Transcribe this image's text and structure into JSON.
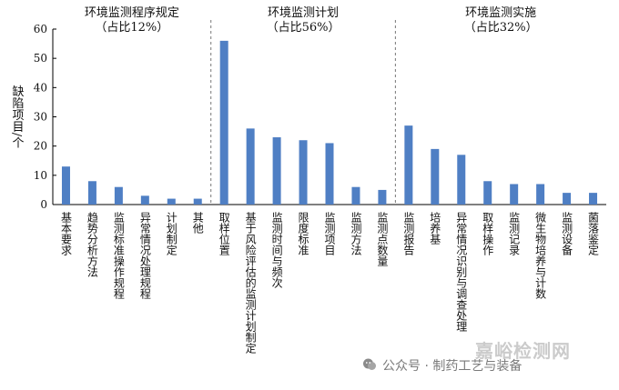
{
  "chart_data": {
    "type": "bar",
    "ylabel": "缺陷项目/个",
    "ylim": [
      0,
      60
    ],
    "yticks": [
      0,
      10,
      20,
      30,
      40,
      50,
      60
    ],
    "bar_color": "#4f7fc4",
    "groups": [
      {
        "title": "环境监测程序规定",
        "share": "（占比12%）",
        "categories": [
          "基本要求",
          "趋势分析方法",
          "监测标准操作规程",
          "异常情况处理规程",
          "计划制定",
          "其他"
        ],
        "values": [
          13,
          8,
          6,
          3,
          2,
          2
        ]
      },
      {
        "title": "环境监测计划",
        "share": "（占比56%）",
        "categories": [
          "取样位置",
          "基于风险评估的监测计划制定",
          "监测时间与频次",
          "限度标准",
          "监测项目",
          "监测方法",
          "监测点数量"
        ],
        "values": [
          56,
          26,
          23,
          22,
          21,
          6,
          5
        ]
      },
      {
        "title": "环境监测实施",
        "share": "（占比32%）",
        "categories": [
          "监测报告",
          "培养基",
          "异常情况识别与调查处理",
          "取样操作",
          "监测记录",
          "微生物培养与计数",
          "监测设备",
          "菌落鉴定"
        ],
        "values": [
          27,
          19,
          17,
          8,
          7,
          7,
          4,
          4
        ]
      }
    ]
  },
  "watermark": {
    "account": "公众号 · 制药工艺与装备",
    "site": "嘉峪检测网",
    "icon": "wechat-icon"
  }
}
